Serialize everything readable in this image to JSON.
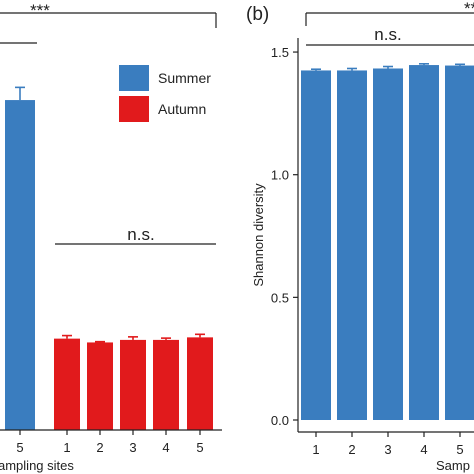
{
  "colors": {
    "summer": "#3a7dbf",
    "autumn": "#e11a1c",
    "axis": "#222222"
  },
  "chart_data": [
    {
      "panel": "a",
      "type": "bar",
      "x_tick_labels_visible": [
        "5",
        "1",
        "2",
        "3",
        "4",
        "5"
      ],
      "xlabel_visible": "ampling sites",
      "series": [
        {
          "name": "Summer",
          "categories": [
            "5"
          ],
          "values": [
            1.3
          ],
          "errors": [
            0.05
          ]
        },
        {
          "name": "Autumn",
          "categories": [
            "1",
            "2",
            "3",
            "4",
            "5"
          ],
          "values": [
            0.36,
            0.345,
            0.355,
            0.355,
            0.365
          ],
          "errors": [
            0.012,
            0.003,
            0.012,
            0.007,
            0.012
          ]
        }
      ],
      "legend": {
        "placement": "top-right",
        "entries": [
          "Summer",
          "Autumn"
        ]
      },
      "annotations": {
        "season_significance": "***",
        "autumn_sites": "n.s."
      },
      "grid": false
    },
    {
      "panel": "b",
      "type": "bar",
      "panel_label": "(b)",
      "categories": [
        "1",
        "2",
        "3",
        "4",
        "5"
      ],
      "ylabel": "Shannon diversity",
      "xlabel_visible": "Samp",
      "y_ticks": [
        "0.0",
        "0.5",
        "1.0",
        "1.5"
      ],
      "ylim": [
        0,
        1.6
      ],
      "series": [
        {
          "name": "Summer",
          "values": [
            1.425,
            1.425,
            1.433,
            1.447,
            1.445
          ],
          "errors": [
            0.005,
            0.008,
            0.008,
            0.005,
            0.005
          ]
        }
      ],
      "annotations": {
        "site_significance": "n.s.",
        "partial_top_marker": "**"
      },
      "grid": false
    }
  ]
}
